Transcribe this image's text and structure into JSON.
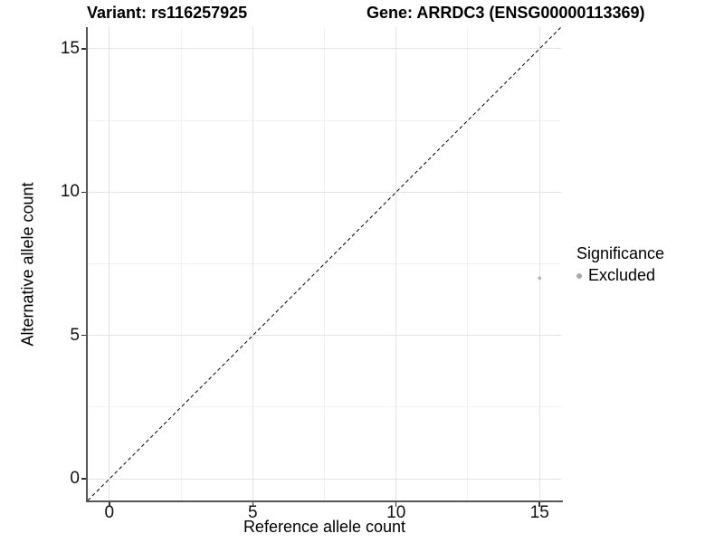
{
  "chart_data": {
    "type": "scatter",
    "titles": {
      "left": "Variant: rs116257925",
      "right": "Gene: ARRDC3 (ENSG00000113369)"
    },
    "xlabel": "Reference allele count",
    "ylabel": "Alternative allele count",
    "xlim": [
      -0.75,
      15.75
    ],
    "ylim": [
      -0.75,
      15.75
    ],
    "x_ticks": [
      0,
      5,
      10,
      15
    ],
    "y_ticks": [
      0,
      5,
      10,
      15
    ],
    "minor_ticks": [
      2.5,
      7.5,
      12.5
    ],
    "grid": "major and minor, light gray, on white background",
    "identity_line": {
      "type": "y=x",
      "style": "dashed",
      "color": "#000000"
    },
    "series": [
      {
        "name": "Excluded",
        "color": "#b5b5b5",
        "points": [
          {
            "x": 15,
            "y": 7
          }
        ]
      }
    ],
    "legend": {
      "title": "Significance",
      "position": "right",
      "items": [
        {
          "label": "Excluded",
          "color": "#a8a8a8"
        }
      ]
    }
  },
  "colors": {
    "background": "#ffffff",
    "axis_line": "#565656",
    "tick": "#333333",
    "grid_major": "#e4e4e4",
    "grid_minor": "#f2f2f2",
    "point": "#b5b5b5",
    "legend_key": "#a8a8a8",
    "text": "#000000",
    "identity_line": "#000000"
  }
}
